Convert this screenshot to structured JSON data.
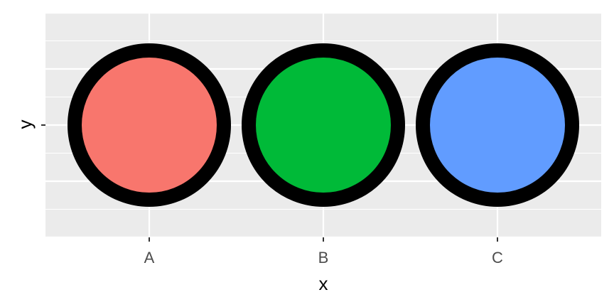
{
  "chart_data": {
    "type": "scatter",
    "title": "",
    "xlabel": "x",
    "ylabel": "y",
    "categories": [
      "A",
      "B",
      "C"
    ],
    "points": [
      {
        "x": "A",
        "y": 0,
        "fill": "#F8766D",
        "stroke": "#000000"
      },
      {
        "x": "B",
        "y": 0,
        "fill": "#00BA38",
        "stroke": "#000000"
      },
      {
        "x": "C",
        "y": 0,
        "fill": "#619CFF",
        "stroke": "#000000"
      }
    ],
    "ylim": [
      -0.05,
      0.05
    ],
    "grid": true,
    "panel_background": "#EBEBEB",
    "grid_color": "#FFFFFF"
  }
}
